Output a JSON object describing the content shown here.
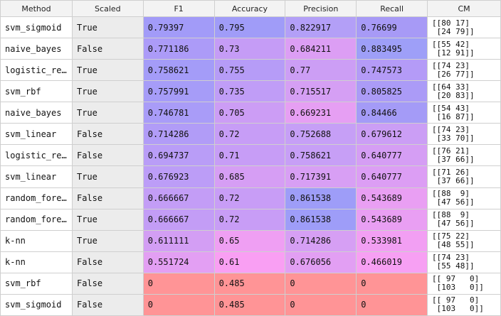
{
  "columns": [
    "Method",
    "Scaled",
    "F1",
    "Accuracy",
    "Precision",
    "Recall",
    "CM"
  ],
  "rows": [
    {
      "method": "svm_sigmoid",
      "scaled": "True",
      "f1": "0.79397",
      "accuracy": "0.795",
      "precision": "0.822917",
      "recall": "0.76699",
      "cm": "[[80 17]\n [24 79]]",
      "colors": {
        "f1": "#a29bf8",
        "accuracy": "#a09cf8",
        "precision": "#b39ff7",
        "recall": "#a79af6"
      }
    },
    {
      "method": "naive_bayes",
      "scaled": "False",
      "f1": "0.771186",
      "accuracy": "0.73",
      "precision": "0.684211",
      "recall": "0.883495",
      "cm": "[[55 42]\n [12 91]]",
      "colors": {
        "f1": "#ac9bf8",
        "accuracy": "#c59cf6",
        "precision": "#dc9ef4",
        "recall": "#9e9ff8"
      }
    },
    {
      "method": "logistic_re…",
      "scaled": "True",
      "f1": "0.758621",
      "accuracy": "0.755",
      "precision": "0.77",
      "recall": "0.747573",
      "cm": "[[74 23]\n [26 77]]",
      "colors": {
        "f1": "#a49cf8",
        "accuracy": "#b69cf7",
        "precision": "#cc9ef5",
        "recall": "#b49bf7"
      }
    },
    {
      "method": "svm_rbf",
      "scaled": "True",
      "f1": "0.757991",
      "accuracy": "0.735",
      "precision": "0.715517",
      "recall": "0.805825",
      "cm": "[[64 33]\n [20 83]]",
      "colors": {
        "f1": "#a69cf8",
        "accuracy": "#c09df7",
        "precision": "#d59ff4",
        "recall": "#ab9bf7"
      }
    },
    {
      "method": "naive_bayes",
      "scaled": "True",
      "f1": "0.746781",
      "accuracy": "0.705",
      "precision": "0.669231",
      "recall": "0.84466",
      "cm": "[[54 43]\n [16 87]]",
      "colors": {
        "f1": "#a99cf8",
        "accuracy": "#cc9df5",
        "precision": "#e69ff3",
        "recall": "#a49bf7"
      }
    },
    {
      "method": "svm_linear",
      "scaled": "False",
      "f1": "0.714286",
      "accuracy": "0.72",
      "precision": "0.752688",
      "recall": "0.679612",
      "cm": "[[74 23]\n [33 70]]",
      "colors": {
        "f1": "#b19cf7",
        "accuracy": "#c79df6",
        "precision": "#c69ff6",
        "recall": "#cb9ef5"
      }
    },
    {
      "method": "logistic_re…",
      "scaled": "False",
      "f1": "0.694737",
      "accuracy": "0.71",
      "precision": "0.758621",
      "recall": "0.640777",
      "cm": "[[76 21]\n [37 66]]",
      "colors": {
        "f1": "#b99df7",
        "accuracy": "#c79df6",
        "precision": "#c79ff6",
        "recall": "#d59ef4"
      }
    },
    {
      "method": "svm_linear",
      "scaled": "True",
      "f1": "0.676923",
      "accuracy": "0.685",
      "precision": "0.717391",
      "recall": "0.640777",
      "cm": "[[71 26]\n [37 66]]",
      "colors": {
        "f1": "#bc9df7",
        "accuracy": "#d69ef4",
        "precision": "#d89ff4",
        "recall": "#dc9ef4"
      }
    },
    {
      "method": "random_fore…",
      "scaled": "False",
      "f1": "0.666667",
      "accuracy": "0.72",
      "precision": "0.861538",
      "recall": "0.543689",
      "cm": "[[88  9]\n [47 56]]",
      "colors": {
        "f1": "#c39df6",
        "accuracy": "#c89df6",
        "precision": "#9e9df8",
        "recall": "#e99ff3"
      }
    },
    {
      "method": "random_fore…",
      "scaled": "True",
      "f1": "0.666667",
      "accuracy": "0.72",
      "precision": "0.861538",
      "recall": "0.543689",
      "cm": "[[88  9]\n [47 56]]",
      "colors": {
        "f1": "#c39df6",
        "accuracy": "#c89df6",
        "precision": "#9e9df8",
        "recall": "#e99ff3"
      }
    },
    {
      "method": "k-nn",
      "scaled": "True",
      "f1": "0.611111",
      "accuracy": "0.65",
      "precision": "0.714286",
      "recall": "0.533981",
      "cm": "[[75 22]\n [48 55]]",
      "colors": {
        "f1": "#d39ef4",
        "accuracy": "#ef9ff3",
        "precision": "#d69ff4",
        "recall": "#f29ff3"
      }
    },
    {
      "method": "k-nn",
      "scaled": "False",
      "f1": "0.551724",
      "accuracy": "0.61",
      "precision": "0.676056",
      "recall": "0.466019",
      "cm": "[[74 23]\n [55 48]]",
      "colors": {
        "f1": "#e39ff3",
        "accuracy": "#f99ff3",
        "precision": "#e29ff3",
        "recall": "#f7a0f3"
      }
    },
    {
      "method": "svm_rbf",
      "scaled": "False",
      "f1": "0",
      "accuracy": "0.485",
      "precision": "0",
      "recall": "0",
      "cm": "[[ 97   0]\n [103   0]]",
      "colors": {
        "f1": "#ff9496",
        "accuracy": "#ff9496",
        "precision": "#ff9496",
        "recall": "#ff9496"
      }
    },
    {
      "method": "svm_sigmoid",
      "scaled": "False",
      "f1": "0",
      "accuracy": "0.485",
      "precision": "0",
      "recall": "0",
      "cm": "[[ 97   0]\n [103   0]]",
      "colors": {
        "f1": "#ff9496",
        "accuracy": "#ff9496",
        "precision": "#ff9496",
        "recall": "#ff9496"
      }
    }
  ]
}
